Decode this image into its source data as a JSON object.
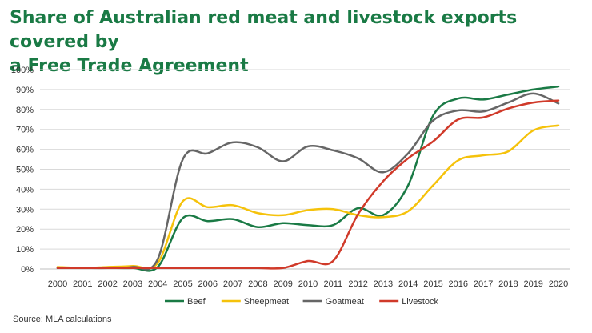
{
  "title": {
    "line1": "Share of Australian red meat and livestock exports covered by",
    "line2": "a Free Trade Agreement"
  },
  "source": "Source: MLA calculations",
  "chart_data": {
    "type": "line",
    "title": "Share of Australian red meat and livestock exports covered by a Free Trade Agreement",
    "xlabel": "",
    "ylabel": "",
    "x": [
      "2000",
      "2001",
      "2002",
      "2003",
      "2004",
      "2005",
      "2006",
      "2007",
      "2008",
      "2009",
      "2010",
      "2011",
      "2012",
      "2013",
      "2014",
      "2015",
      "2016",
      "2017",
      "2018",
      "2019",
      "2020"
    ],
    "ylim": [
      0,
      100
    ],
    "yticks": [
      "0%",
      "10%",
      "20%",
      "30%",
      "40%",
      "50%",
      "60%",
      "70%",
      "80%",
      "90%",
      "100%"
    ],
    "grid": true,
    "legend": "bottom",
    "series": [
      {
        "name": "Beef",
        "color": "#1a7a45",
        "values": [
          0.5,
          0.5,
          0.5,
          0.5,
          1,
          25.5,
          24,
          25,
          21,
          23,
          22,
          22,
          30.5,
          27,
          42,
          77,
          85.5,
          85,
          87.5,
          90,
          91.5
        ]
      },
      {
        "name": "Sheepmeat",
        "color": "#f5c20b",
        "values": [
          1,
          0.5,
          1,
          1.5,
          3,
          34,
          31,
          32,
          28,
          27,
          29.5,
          30,
          27,
          26,
          29,
          42,
          54.5,
          57,
          59,
          69.5,
          72
        ]
      },
      {
        "name": "Goatmeat",
        "color": "#666666",
        "values": [
          0.5,
          0.5,
          0.5,
          1,
          5,
          55,
          58,
          63.5,
          61,
          54,
          61.5,
          59.5,
          55.5,
          48.5,
          58,
          74.5,
          79.5,
          79,
          83.5,
          88,
          83
        ]
      },
      {
        "name": "Livestock",
        "color": "#d03a2a",
        "values": [
          0.5,
          0.5,
          0.5,
          0.5,
          0.5,
          0.5,
          0.5,
          0.5,
          0.5,
          0.5,
          4,
          4,
          27.5,
          44,
          55.5,
          64,
          75,
          76,
          80.5,
          83.5,
          84.5
        ]
      }
    ]
  }
}
